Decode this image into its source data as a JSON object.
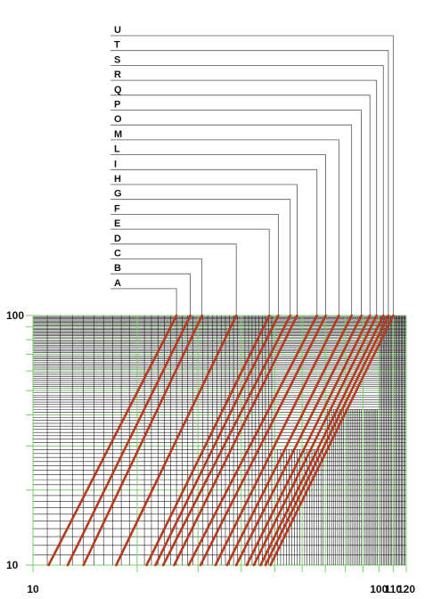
{
  "chart_data": {
    "type": "line",
    "title": "",
    "xlabel": "",
    "ylabel": "",
    "x_scale": "log",
    "y_scale": "log",
    "xlim": [
      10,
      120
    ],
    "ylim": [
      10,
      100
    ],
    "x_tick_labels": [
      "10",
      "100",
      "110",
      "120"
    ],
    "y_tick_labels": [
      "100",
      "10"
    ],
    "grid": true,
    "colors": {
      "curve": "#b83a1e",
      "grid_major": "#7ccf6b",
      "grid_minor": "#222222",
      "leader": "#555555"
    },
    "series": [
      {
        "name": "A",
        "x": [
          11.1,
          26.0
        ],
        "y": [
          10,
          100
        ]
      },
      {
        "name": "B",
        "x": [
          12.6,
          28.5
        ],
        "y": [
          10,
          100
        ]
      },
      {
        "name": "C",
        "x": [
          14.0,
          30.8
        ],
        "y": [
          10,
          100
        ]
      },
      {
        "name": "D",
        "x": [
          17.4,
          38.7
        ],
        "y": [
          10,
          100
        ]
      },
      {
        "name": "E",
        "x": [
          21.3,
          48.2
        ],
        "y": [
          10,
          100
        ]
      },
      {
        "name": "F",
        "x": [
          22.6,
          51.2
        ],
        "y": [
          10,
          100
        ]
      },
      {
        "name": "G",
        "x": [
          23.8,
          55.4
        ],
        "y": [
          10,
          100
        ]
      },
      {
        "name": "H",
        "x": [
          25.6,
          58.0
        ],
        "y": [
          10,
          100
        ]
      },
      {
        "name": "I",
        "x": [
          28.2,
          66.2
        ],
        "y": [
          10,
          100
        ]
      },
      {
        "name": "L",
        "x": [
          30.5,
          70.2
        ],
        "y": [
          10,
          100
        ]
      },
      {
        "name": "M",
        "x": [
          33.7,
          76.6
        ],
        "y": [
          10,
          100
        ]
      },
      {
        "name": "O",
        "x": [
          36.4,
          83.4
        ],
        "y": [
          10,
          100
        ]
      },
      {
        "name": "P",
        "x": [
          38.7,
          89.0
        ],
        "y": [
          10,
          100
        ]
      },
      {
        "name": "Q",
        "x": [
          41.5,
          94.2
        ],
        "y": [
          10,
          100
        ]
      },
      {
        "name": "R",
        "x": [
          43.5,
          98.5
        ],
        "y": [
          10,
          100
        ]
      },
      {
        "name": "S",
        "x": [
          45.5,
          103.0
        ],
        "y": [
          10,
          100
        ]
      },
      {
        "name": "T",
        "x": [
          47.0,
          106.5
        ],
        "y": [
          10,
          100
        ]
      },
      {
        "name": "U",
        "x": [
          48.6,
          110.0
        ],
        "y": [
          10,
          100
        ]
      }
    ]
  }
}
